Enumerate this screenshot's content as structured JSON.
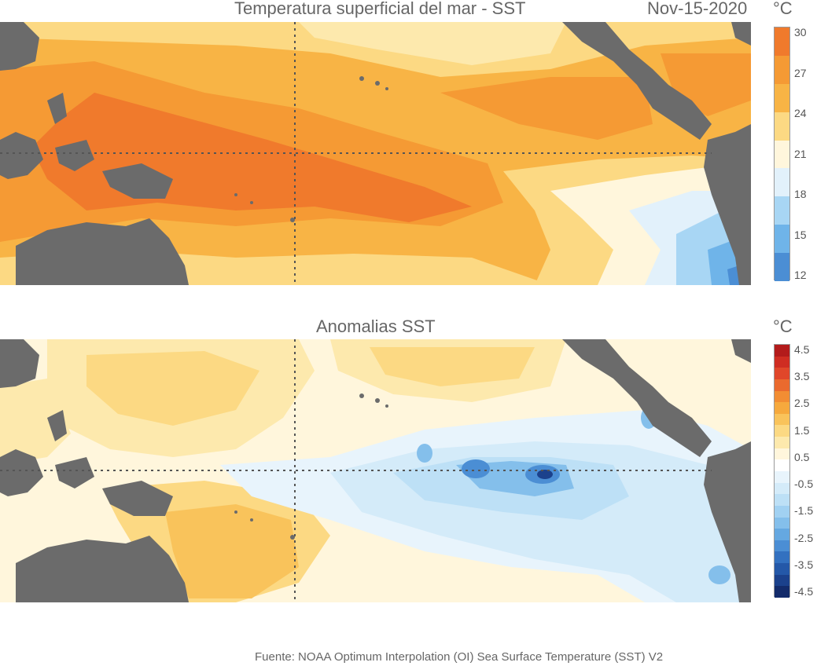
{
  "top_panel": {
    "title": "Temperatura superficial del mar - SST",
    "date": "Nov-15-2020",
    "unit": "°C",
    "colorbar": {
      "ticks": [
        "30",
        "27",
        "24",
        "21",
        "18",
        "15",
        "12"
      ],
      "colors": [
        "#f07a2c",
        "#f59a34",
        "#f8b445",
        "#fcd983",
        "#fff6dc",
        "#e2f1fb",
        "#a8d6f4",
        "#6fb4e9",
        "#4b8ed4"
      ]
    }
  },
  "bottom_panel": {
    "title": "Anomalias SST",
    "unit": "°C",
    "colorbar": {
      "ticks": [
        "4.5",
        "3.5",
        "2.5",
        "1.5",
        "0.5",
        "-0.5",
        "-1.5",
        "-2.5",
        "-3.5",
        "-4.5"
      ],
      "colors": [
        "#b31b1b",
        "#cf2d22",
        "#e0472a",
        "#ea6a2e",
        "#f28d33",
        "#f6a93d",
        "#f9c35b",
        "#fcd983",
        "#fde9ad",
        "#fff6dc",
        "#ffffff",
        "#e8f4fc",
        "#d4ebf9",
        "#bde0f6",
        "#a1d1f2",
        "#84bfeb",
        "#65a8e1",
        "#4b8ed4",
        "#3371c0",
        "#2458a8",
        "#1b418c",
        "#132b6b"
      ]
    }
  },
  "footer": "Fuente: NOAA Optimum Interpolation (OI) Sea Surface Temperature (SST) V2"
}
